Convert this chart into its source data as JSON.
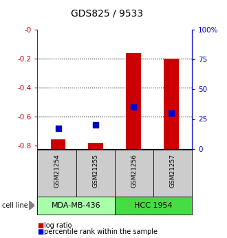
{
  "title": "GDS825 / 9533",
  "samples": [
    "GSM21254",
    "GSM21255",
    "GSM21256",
    "GSM21257"
  ],
  "log_ratios": [
    -0.755,
    -0.778,
    -0.163,
    -0.2
  ],
  "percentile_ranks": [
    17,
    20,
    35,
    30
  ],
  "cell_lines": [
    {
      "label": "MDA-MB-436",
      "samples": [
        0,
        1
      ],
      "color": "#aaffaa"
    },
    {
      "label": "HCC 1954",
      "samples": [
        2,
        3
      ],
      "color": "#44dd44"
    }
  ],
  "ylim_left": [
    -0.82,
    0.0
  ],
  "ylim_right": [
    0,
    100
  ],
  "bar_color": "#cc0000",
  "dot_color": "#0000cc",
  "sample_box_color": "#cccccc",
  "left_tick_color": "#cc0000",
  "right_tick_color": "#0000cc",
  "title_fontsize": 10,
  "tick_fontsize": 7.5,
  "legend_fontsize": 7,
  "cell_line_label_fontsize": 7,
  "sample_label_fontsize": 6.5,
  "cell_line_text_fontsize": 8
}
